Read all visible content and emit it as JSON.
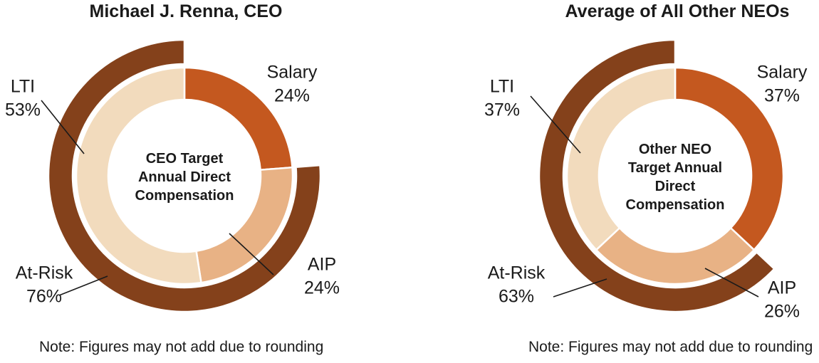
{
  "colors": {
    "salary": "#C4581F",
    "aip": "#E8B285",
    "lti": "#F2DBBD",
    "at_risk": "#84411B",
    "text": "#1A1A1A",
    "leader_line": "#1A1A1A",
    "background": "#FFFFFF"
  },
  "chart_data": [
    {
      "type": "donut",
      "title": "Michael J. Renna, CEO",
      "center_text": "CEO Target\nAnnual Direct\nCompensation",
      "units": "%",
      "inner_ring": [
        {
          "label": "Salary",
          "value": 24,
          "color_key": "salary"
        },
        {
          "label": "AIP",
          "value": 24,
          "color_key": "aip"
        },
        {
          "label": "LTI",
          "value": 53,
          "color_key": "lti"
        }
      ],
      "outer_ring": {
        "label": "At-Risk",
        "value": 76,
        "color_key": "at_risk"
      },
      "note": "Note: Figures may not add due to rounding"
    },
    {
      "type": "donut",
      "title": "Average of All Other NEOs",
      "center_text": "Other NEO\nTarget Annual\nDirect\nCompensation",
      "units": "%",
      "inner_ring": [
        {
          "label": "Salary",
          "value": 37,
          "color_key": "salary"
        },
        {
          "label": "AIP",
          "value": 26,
          "color_key": "aip"
        },
        {
          "label": "LTI",
          "value": 37,
          "color_key": "lti"
        }
      ],
      "outer_ring": {
        "label": "At-Risk",
        "value": 63,
        "color_key": "at_risk"
      },
      "note": "Note: Figures may not add due to rounding"
    }
  ]
}
